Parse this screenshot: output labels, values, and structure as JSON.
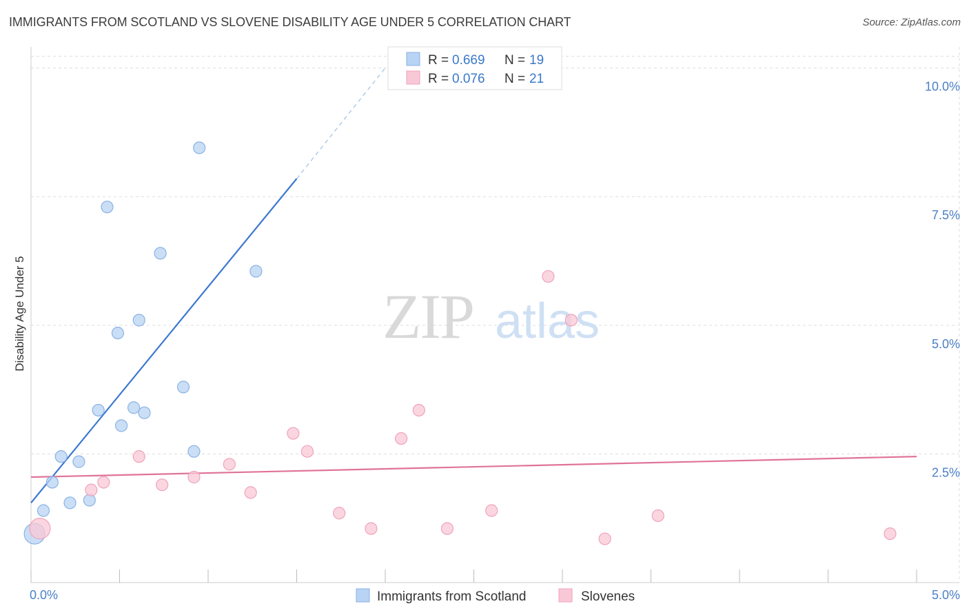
{
  "title": "IMMIGRANTS FROM SCOTLAND VS SLOVENE DISABILITY AGE UNDER 5 CORRELATION CHART",
  "source": "Source: ZipAtlas.com",
  "watermark": {
    "zip": "ZIP",
    "atlas": "atlas"
  },
  "colors": {
    "blue_fill": "#b8d3f3",
    "blue_stroke": "#8ab2e4",
    "blue_line": "#3b78cf",
    "pink_fill": "#f9c8d6",
    "pink_stroke": "#eea3bb",
    "pink_line": "#e0729a",
    "grid": "#dddddd",
    "tick_text": "#4a7fc6"
  },
  "legend_top": [
    {
      "r_label": "R =",
      "r_value": "0.669",
      "n_label": "N =",
      "n_value": "19"
    },
    {
      "r_label": "R =",
      "r_value": "0.076",
      "n_label": "N =",
      "n_value": "21"
    }
  ],
  "legend_bottom": [
    "Immigrants from Scotland",
    "Slovenes"
  ],
  "chart_data": {
    "type": "scatter",
    "title": "IMMIGRANTS FROM SCOTLAND VS SLOVENE DISABILITY AGE UNDER 5 CORRELATION CHART",
    "xlabel": "",
    "ylabel": "Disability Age Under 5",
    "xlim": [
      0,
      5.0
    ],
    "ylim": [
      0,
      10.25
    ],
    "x_ticks": [
      "0.0%",
      "5.0%"
    ],
    "y_ticks": [
      {
        "value": 2.5,
        "label": "2.5%"
      },
      {
        "value": 5.0,
        "label": "5.0%"
      },
      {
        "value": 7.5,
        "label": "7.5%"
      },
      {
        "value": 10.0,
        "label": "10.0%"
      }
    ],
    "grid": true,
    "series": [
      {
        "name": "Immigrants from Scotland",
        "color": "#b8d3f3",
        "points": [
          {
            "x": 0.02,
            "y": 0.95,
            "size": "large"
          },
          {
            "x": 0.07,
            "y": 1.4
          },
          {
            "x": 0.12,
            "y": 1.95
          },
          {
            "x": 0.17,
            "y": 2.45
          },
          {
            "x": 0.22,
            "y": 1.55
          },
          {
            "x": 0.27,
            "y": 2.35
          },
          {
            "x": 0.33,
            "y": 1.6
          },
          {
            "x": 0.38,
            "y": 3.35
          },
          {
            "x": 0.43,
            "y": 7.3
          },
          {
            "x": 0.49,
            "y": 4.85
          },
          {
            "x": 0.51,
            "y": 3.05
          },
          {
            "x": 0.58,
            "y": 3.4
          },
          {
            "x": 0.61,
            "y": 5.1
          },
          {
            "x": 0.64,
            "y": 3.3
          },
          {
            "x": 0.73,
            "y": 6.4
          },
          {
            "x": 0.86,
            "y": 3.8
          },
          {
            "x": 0.92,
            "y": 2.55
          },
          {
            "x": 0.95,
            "y": 8.45
          },
          {
            "x": 1.27,
            "y": 6.05
          }
        ],
        "trend": {
          "x_start": 0.0,
          "y_start": 1.55,
          "x_end": 1.5,
          "y_end": 7.85,
          "dashed_to_x": 2.0,
          "dashed_to_y": 10.0
        }
      },
      {
        "name": "Slovenes",
        "color": "#f9c8d6",
        "points": [
          {
            "x": 0.05,
            "y": 1.05,
            "size": "large"
          },
          {
            "x": 0.34,
            "y": 1.8
          },
          {
            "x": 0.41,
            "y": 1.95
          },
          {
            "x": 0.61,
            "y": 2.45
          },
          {
            "x": 0.74,
            "y": 1.9
          },
          {
            "x": 0.92,
            "y": 2.05
          },
          {
            "x": 1.12,
            "y": 2.3
          },
          {
            "x": 1.24,
            "y": 1.75
          },
          {
            "x": 1.48,
            "y": 2.9
          },
          {
            "x": 1.56,
            "y": 2.55
          },
          {
            "x": 1.74,
            "y": 1.35
          },
          {
            "x": 1.92,
            "y": 1.05
          },
          {
            "x": 2.09,
            "y": 2.8
          },
          {
            "x": 2.19,
            "y": 3.35
          },
          {
            "x": 2.35,
            "y": 1.05
          },
          {
            "x": 2.6,
            "y": 1.4
          },
          {
            "x": 2.92,
            "y": 5.95
          },
          {
            "x": 3.05,
            "y": 5.1
          },
          {
            "x": 3.24,
            "y": 0.85
          },
          {
            "x": 3.54,
            "y": 1.3
          },
          {
            "x": 4.85,
            "y": 0.95
          }
        ],
        "trend": {
          "x_start": 0.0,
          "y_start": 2.05,
          "x_end": 5.0,
          "y_end": 2.45
        }
      }
    ]
  }
}
